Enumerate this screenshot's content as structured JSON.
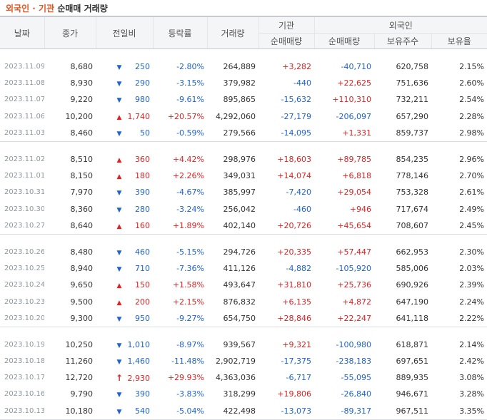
{
  "title": {
    "part1": "외국인 · 기관",
    "part2": "순매매 거래량"
  },
  "headers": {
    "date": "날짜",
    "close": "종가",
    "change": "전일비",
    "rate": "등락률",
    "volume": "거래량",
    "inst_group": "기관",
    "foreign_group": "외국인",
    "inst_net": "순매매량",
    "foreign_net": "순매매량",
    "foreign_hold": "보유주수",
    "foreign_ratio": "보유율"
  },
  "colors": {
    "up": "#e02222",
    "down": "#1e63d0",
    "title_accent": "#e8541e"
  },
  "rows": [
    {
      "date": "2023.11.09",
      "close": "8,680",
      "dir": "down",
      "change": "250",
      "rate": "-2.80%",
      "volume": "264,889",
      "inst": "+3,282",
      "foreign": "-40,710",
      "hold": "620,758",
      "ratio": "2.15%"
    },
    {
      "date": "2023.11.08",
      "close": "8,930",
      "dir": "down",
      "change": "290",
      "rate": "-3.15%",
      "volume": "379,982",
      "inst": "-440",
      "foreign": "+22,625",
      "hold": "751,636",
      "ratio": "2.60%"
    },
    {
      "date": "2023.11.07",
      "close": "9,220",
      "dir": "down",
      "change": "980",
      "rate": "-9.61%",
      "volume": "895,865",
      "inst": "-15,632",
      "foreign": "+110,310",
      "hold": "732,211",
      "ratio": "2.54%"
    },
    {
      "date": "2023.11.06",
      "close": "10,200",
      "dir": "up",
      "change": "1,740",
      "rate": "+20.57%",
      "volume": "4,292,060",
      "inst": "-27,179",
      "foreign": "-206,097",
      "hold": "657,290",
      "ratio": "2.28%"
    },
    {
      "date": "2023.11.03",
      "close": "8,460",
      "dir": "down",
      "change": "50",
      "rate": "-0.59%",
      "volume": "279,566",
      "inst": "-14,095",
      "foreign": "+1,331",
      "hold": "859,737",
      "ratio": "2.98%"
    },
    {
      "date": "2023.11.02",
      "close": "8,510",
      "dir": "up",
      "change": "360",
      "rate": "+4.42%",
      "volume": "298,976",
      "inst": "+18,603",
      "foreign": "+89,785",
      "hold": "854,235",
      "ratio": "2.96%"
    },
    {
      "date": "2023.11.01",
      "close": "8,150",
      "dir": "up",
      "change": "180",
      "rate": "+2.26%",
      "volume": "349,031",
      "inst": "+14,074",
      "foreign": "+6,818",
      "hold": "778,146",
      "ratio": "2.70%"
    },
    {
      "date": "2023.10.31",
      "close": "7,970",
      "dir": "down",
      "change": "390",
      "rate": "-4.67%",
      "volume": "385,997",
      "inst": "-7,420",
      "foreign": "+29,054",
      "hold": "753,328",
      "ratio": "2.61%"
    },
    {
      "date": "2023.10.30",
      "close": "8,360",
      "dir": "down",
      "change": "280",
      "rate": "-3.24%",
      "volume": "256,042",
      "inst": "-460",
      "foreign": "+946",
      "hold": "717,674",
      "ratio": "2.49%"
    },
    {
      "date": "2023.10.27",
      "close": "8,640",
      "dir": "up",
      "change": "160",
      "rate": "+1.89%",
      "volume": "402,140",
      "inst": "+20,726",
      "foreign": "+45,654",
      "hold": "708,607",
      "ratio": "2.45%"
    },
    {
      "date": "2023.10.26",
      "close": "8,480",
      "dir": "down",
      "change": "460",
      "rate": "-5.15%",
      "volume": "294,726",
      "inst": "+20,335",
      "foreign": "+57,447",
      "hold": "662,953",
      "ratio": "2.30%"
    },
    {
      "date": "2023.10.25",
      "close": "8,940",
      "dir": "down",
      "change": "710",
      "rate": "-7.36%",
      "volume": "411,126",
      "inst": "-4,882",
      "foreign": "-105,920",
      "hold": "585,006",
      "ratio": "2.03%"
    },
    {
      "date": "2023.10.24",
      "close": "9,650",
      "dir": "up",
      "change": "150",
      "rate": "+1.58%",
      "volume": "493,647",
      "inst": "+31,810",
      "foreign": "+25,736",
      "hold": "690,926",
      "ratio": "2.39%"
    },
    {
      "date": "2023.10.23",
      "close": "9,500",
      "dir": "up",
      "change": "200",
      "rate": "+2.15%",
      "volume": "876,832",
      "inst": "+6,135",
      "foreign": "+4,872",
      "hold": "647,190",
      "ratio": "2.24%"
    },
    {
      "date": "2023.10.20",
      "close": "9,300",
      "dir": "down",
      "change": "950",
      "rate": "-9.27%",
      "volume": "654,750",
      "inst": "+28,846",
      "foreign": "+22,247",
      "hold": "641,118",
      "ratio": "2.22%"
    },
    {
      "date": "2023.10.19",
      "close": "10,250",
      "dir": "down",
      "change": "1,010",
      "rate": "-8.97%",
      "volume": "939,567",
      "inst": "+9,321",
      "foreign": "-100,980",
      "hold": "618,871",
      "ratio": "2.14%"
    },
    {
      "date": "2023.10.18",
      "close": "11,260",
      "dir": "down",
      "change": "1,460",
      "rate": "-11.48%",
      "volume": "2,902,719",
      "inst": "-17,375",
      "foreign": "-238,183",
      "hold": "697,651",
      "ratio": "2.42%"
    },
    {
      "date": "2023.10.17",
      "close": "12,720",
      "dir": "upper",
      "change": "2,930",
      "rate": "+29.93%",
      "volume": "4,363,036",
      "inst": "-6,717",
      "foreign": "-55,095",
      "hold": "889,935",
      "ratio": "3.08%"
    },
    {
      "date": "2023.10.16",
      "close": "9,790",
      "dir": "down",
      "change": "390",
      "rate": "-3.83%",
      "volume": "318,299",
      "inst": "+19,806",
      "foreign": "-26,840",
      "hold": "946,671",
      "ratio": "3.28%"
    },
    {
      "date": "2023.10.13",
      "close": "10,180",
      "dir": "down",
      "change": "540",
      "rate": "-5.04%",
      "volume": "422,498",
      "inst": "-13,073",
      "foreign": "-89,317",
      "hold": "967,511",
      "ratio": "3.35%"
    }
  ]
}
